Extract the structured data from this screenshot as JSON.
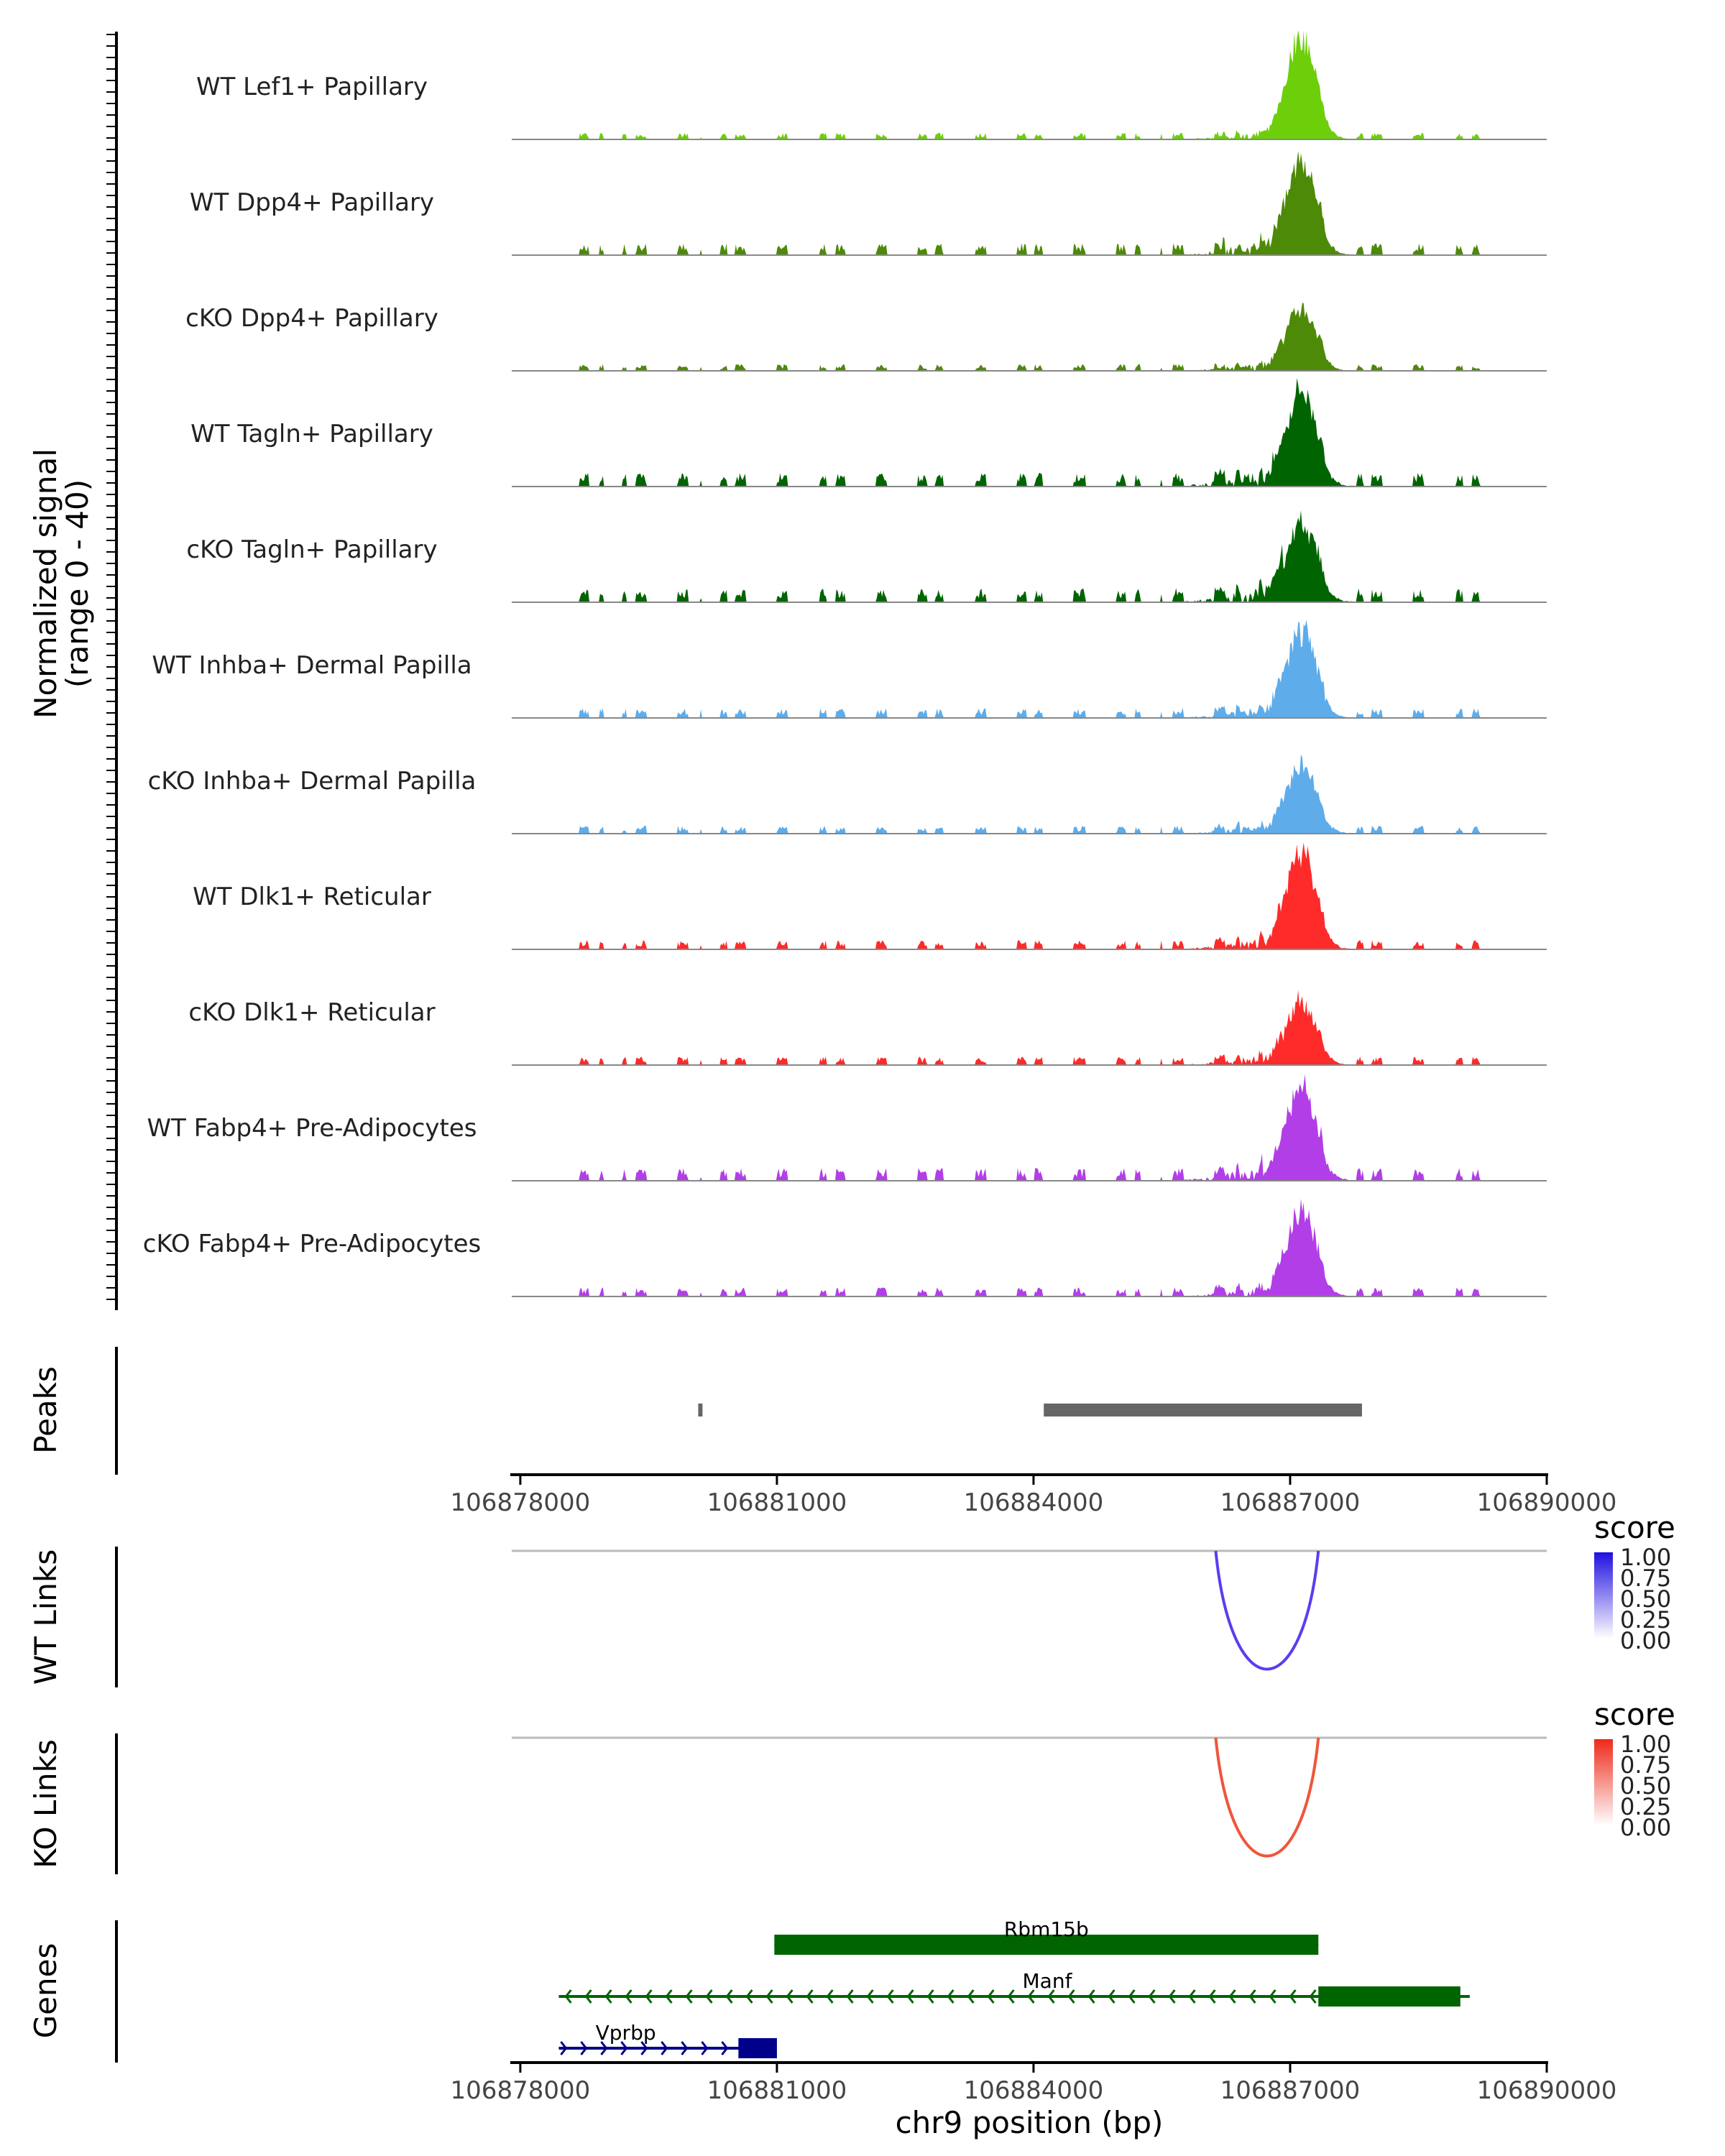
{
  "chart_data": {
    "type": "area",
    "title": "",
    "chromosome": "chr9",
    "xlabel": "chr9 position (bp)",
    "xlim": [
      106877900,
      106890000
    ],
    "xticks": [
      "106878000",
      "106881000",
      "106884000",
      "106887000",
      "106890000"
    ],
    "coverage": {
      "ylabel_line1": "Normalized signal",
      "ylabel_line2": "(range 0 - 40)",
      "ylim": [
        0,
        40
      ],
      "tracks": [
        {
          "name": "WT Lef1+ Papillary",
          "color": "#6ccf0a",
          "peak": 38,
          "base": 2.2,
          "seed": 3
        },
        {
          "name": "WT Dpp4+ Papillary",
          "color": "#4d8a07",
          "peak": 35,
          "base": 4.0,
          "seed": 7
        },
        {
          "name": "cKO Dpp4+ Papillary",
          "color": "#4d8a07",
          "peak": 24,
          "base": 2.2,
          "seed": 11
        },
        {
          "name": "WT Tagln+ Papillary",
          "color": "#006400",
          "peak": 36,
          "base": 4.5,
          "seed": 17
        },
        {
          "name": "cKO Tagln+ Papillary",
          "color": "#006400",
          "peak": 30,
          "base": 4.5,
          "seed": 23
        },
        {
          "name": "WT Inhba+ Dermal Papilla",
          "color": "#5eacea",
          "peak": 32,
          "base": 3.2,
          "seed": 29
        },
        {
          "name": "cKO Inhba+ Dermal Papilla",
          "color": "#5eacea",
          "peak": 26,
          "base": 2.6,
          "seed": 31
        },
        {
          "name": "WT Dlk1+ Reticular",
          "color": "#ff2a2a",
          "peak": 36,
          "base": 3.0,
          "seed": 37
        },
        {
          "name": "cKO Dlk1+ Reticular",
          "color": "#ff2a2a",
          "peak": 23,
          "base": 2.8,
          "seed": 41
        },
        {
          "name": "WT Fabp4+ Pre-Adipocytes",
          "color": "#b23ee8",
          "peak": 35,
          "base": 4.2,
          "seed": 43
        },
        {
          "name": "cKO Fabp4+ Pre-Adipocytes",
          "color": "#b23ee8",
          "peak": 31,
          "base": 3.0,
          "seed": 47
        }
      ]
    },
    "peaks": {
      "label": "Peaks",
      "color": "#666666",
      "regions": [
        {
          "start": 106880080,
          "end": 106880130
        },
        {
          "start": 106884120,
          "end": 106887840
        }
      ]
    },
    "links": [
      {
        "label": "WT Links",
        "color": "#5a3df0",
        "legend_title": "score",
        "legend_color": "#2010e0",
        "legend_ticks": [
          "1.00",
          "0.75",
          "0.50",
          "0.25",
          "0.00"
        ],
        "start": 106886130,
        "end": 106887330,
        "score": 0.72
      },
      {
        "label": "KO Links",
        "color": "#f0553a",
        "legend_title": "score",
        "legend_color": "#ee2a1a",
        "legend_ticks": [
          "1.00",
          "0.75",
          "0.50",
          "0.25",
          "0.00"
        ],
        "start": 106886130,
        "end": 106887330,
        "score": 0.72
      }
    ],
    "genes": {
      "label": "Genes",
      "items": [
        {
          "name": "Rbm15b",
          "color": "#006400",
          "strand": "+",
          "start": 106880970,
          "end": 106887330,
          "exons": [
            [
              106880970,
              106887330
            ]
          ],
          "row": 0
        },
        {
          "name": "Manf",
          "color": "#006400",
          "strand": "-",
          "start": 106878450,
          "end": 106889100,
          "exons": [
            [
              106887330,
              106888990
            ]
          ],
          "row": 1
        },
        {
          "name": "Vprbp",
          "color": "#00008b",
          "strand": "+",
          "start": 106878450,
          "end": 106881000,
          "exons": [
            [
              106880550,
              106881000
            ]
          ],
          "row": 2
        }
      ]
    }
  }
}
